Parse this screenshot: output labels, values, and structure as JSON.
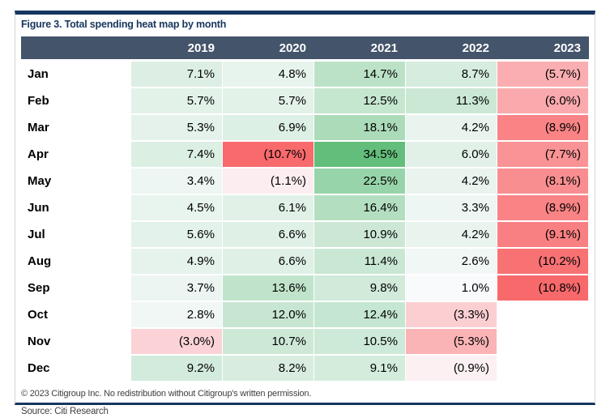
{
  "figure": {
    "title": "Figure 3. Total spending heat map by month",
    "copyright_note": "© 2023 Citigroup Inc. No redistribution without Citigroup's written permission.",
    "source_note": "Source: Citi Research"
  },
  "colors": {
    "rule_navy": "#17365d",
    "header_band": "#44546a",
    "header_text": "#ffffff",
    "title_text": "#17365d",
    "frame_border": "#d6d6d6",
    "footnote_text": "#404040",
    "scale_max_green": "#63be7b",
    "scale_mid_white": "#fcfcff",
    "scale_min_red": "#f8696b"
  },
  "chart_data": {
    "type": "heatmap",
    "title": "Figure 3. Total spending heat map by month",
    "columns": [
      "2019",
      "2020",
      "2021",
      "2022",
      "2023"
    ],
    "row_label_type": "month",
    "rows": [
      {
        "month": "Jan",
        "values": [
          7.1,
          4.8,
          14.7,
          8.7,
          -5.7
        ]
      },
      {
        "month": "Feb",
        "values": [
          5.7,
          5.7,
          12.5,
          11.3,
          -6.0
        ]
      },
      {
        "month": "Mar",
        "values": [
          5.3,
          6.9,
          18.1,
          4.2,
          -8.9
        ]
      },
      {
        "month": "Apr",
        "values": [
          7.4,
          -10.7,
          34.5,
          6.0,
          -7.7
        ]
      },
      {
        "month": "May",
        "values": [
          3.4,
          -1.1,
          22.5,
          4.2,
          -8.1
        ]
      },
      {
        "month": "Jun",
        "values": [
          4.5,
          6.1,
          16.4,
          3.3,
          -8.9
        ]
      },
      {
        "month": "Jul",
        "values": [
          5.6,
          6.6,
          10.9,
          4.2,
          -9.1
        ]
      },
      {
        "month": "Aug",
        "values": [
          4.9,
          6.6,
          11.4,
          2.6,
          -10.2
        ]
      },
      {
        "month": "Sep",
        "values": [
          3.7,
          13.6,
          9.8,
          1.0,
          -10.8
        ]
      },
      {
        "month": "Oct",
        "values": [
          2.8,
          12.0,
          12.4,
          -3.3,
          null
        ]
      },
      {
        "month": "Nov",
        "values": [
          -3.0,
          10.7,
          10.5,
          -5.3,
          null
        ]
      },
      {
        "month": "Dec",
        "values": [
          9.2,
          8.2,
          9.1,
          -0.9,
          null
        ]
      }
    ],
    "value_format": "percent, negatives in parentheses",
    "color_scale": {
      "min": -10.8,
      "mid": 0,
      "max": 34.5
    },
    "legend": "none",
    "grid": "white 1-2px gridlines between cells"
  }
}
